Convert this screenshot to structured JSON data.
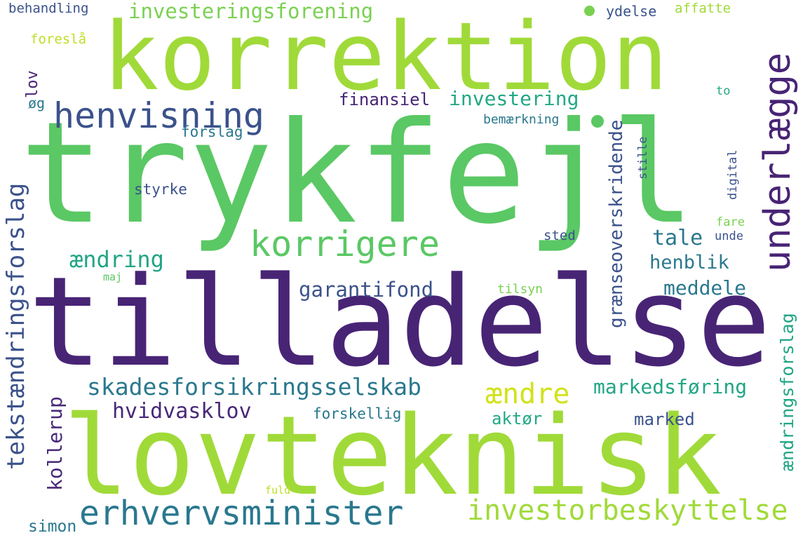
{
  "words": [
    {
      "key": "trykfejl",
      "text": "trykfejl",
      "color": "#5ac864"
    },
    {
      "key": "tilladelse",
      "text": "tilladelse",
      "color": "#482475"
    },
    {
      "key": "lovteknisk",
      "text": "lovteknisk",
      "color": "#a0da39"
    },
    {
      "key": "korrektion",
      "text": "korrektion",
      "color": "#a0da39"
    },
    {
      "key": "henvisning",
      "text": "henvisning",
      "color": "#3b528b"
    },
    {
      "key": "underlaegge",
      "text": "underlægge",
      "color": "#482475"
    },
    {
      "key": "korrigere",
      "text": "korrigere",
      "color": "#5ac864"
    },
    {
      "key": "erhvervsminister",
      "text": "erhvervsminister",
      "color": "#2a788e"
    },
    {
      "key": "investorbeskyttelse",
      "text": "investorbeskyttelse",
      "color": "#a0da39"
    },
    {
      "key": "skadesforsikringsselskab",
      "text": "skadesforsikringsselskab",
      "color": "#2a788e"
    },
    {
      "key": "tekstaendringsforslag",
      "text": "tekstændringsforslag",
      "color": "#3b528b"
    },
    {
      "key": "investeringsforening",
      "text": "investeringsforening",
      "color": "#7ad151"
    },
    {
      "key": "graenseoverskridende",
      "text": "grænseoverskridende",
      "color": "#3b528b"
    },
    {
      "key": "aendringsforslag",
      "text": "ændringsforslag",
      "color": "#21a585"
    },
    {
      "key": "aendre",
      "text": "ændre",
      "color": "#d2e21b"
    },
    {
      "key": "hvidvasklov",
      "text": "hvidvasklov",
      "color": "#482878"
    },
    {
      "key": "garantifond",
      "text": "garantifond",
      "color": "#3b528b"
    },
    {
      "key": "markedsforing",
      "text": "markedsføring",
      "color": "#21a585"
    },
    {
      "key": "investering",
      "text": "investering",
      "color": "#22a884"
    },
    {
      "key": "finansiel",
      "text": "finansiel",
      "color": "#482475"
    },
    {
      "key": "kollerup",
      "text": "kollerup",
      "color": "#482878"
    },
    {
      "key": "aendring",
      "text": "ændring",
      "color": "#21a585"
    },
    {
      "key": "meddele",
      "text": "meddele",
      "color": "#2a788e"
    },
    {
      "key": "tale",
      "text": "tale",
      "color": "#2a788e"
    },
    {
      "key": "henblik",
      "text": "henblik",
      "color": "#2a788e"
    },
    {
      "key": "marked",
      "text": "marked",
      "color": "#3b528b"
    },
    {
      "key": "aktor",
      "text": "aktør",
      "color": "#22a884"
    },
    {
      "key": "forskellig",
      "text": "forskellig",
      "color": "#2a788e"
    },
    {
      "key": "simon",
      "text": "simon",
      "color": "#2a788e"
    },
    {
      "key": "lov",
      "text": "lov",
      "color": "#482475"
    },
    {
      "key": "og",
      "text": "øg",
      "color": "#2a788e"
    },
    {
      "key": "forslag",
      "text": "forslag",
      "color": "#2a788e"
    },
    {
      "key": "styrke",
      "text": "styrke",
      "color": "#3b528b"
    },
    {
      "key": "bemaerkning",
      "text": "bemærkning",
      "color": "#2a788e"
    },
    {
      "key": "behandling",
      "text": "behandling",
      "color": "#3b528b"
    },
    {
      "key": "foresla",
      "text": "foreslå",
      "color": "#bddf26"
    },
    {
      "key": "ydelse",
      "text": "ydelse",
      "color": "#3b528b"
    },
    {
      "key": "affatte",
      "text": "affatte",
      "color": "#a0da39"
    },
    {
      "key": "to",
      "text": "to",
      "color": "#22a884"
    },
    {
      "key": "stille",
      "text": "stille",
      "color": "#3b528b"
    },
    {
      "key": "digital",
      "text": "digital",
      "color": "#3b528b"
    },
    {
      "key": "fare",
      "text": "fare",
      "color": "#7ad151"
    },
    {
      "key": "unde",
      "text": "unde",
      "color": "#3b528b"
    },
    {
      "key": "sted",
      "text": "sted",
      "color": "#3b528b"
    },
    {
      "key": "maj",
      "text": "maj",
      "color": "#5ac864"
    },
    {
      "key": "tilsyn",
      "text": "tilsyn",
      "color": "#7ad151"
    },
    {
      "key": "fuld",
      "text": "fuld",
      "color": "#bddf26"
    }
  ],
  "dots": [
    {
      "key": "dot1",
      "color": "#7ad151"
    },
    {
      "key": "dot2",
      "color": "#5ac864"
    }
  ]
}
